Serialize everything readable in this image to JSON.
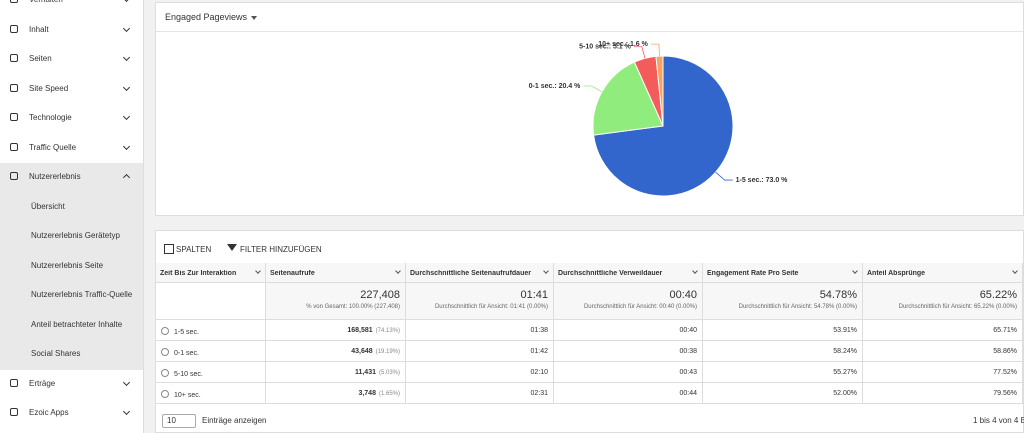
{
  "sidebar": {
    "items": [
      "Verhalten",
      "Inhalt",
      "Seiten",
      "Site Speed",
      "Technologie",
      "Traffic Quelle",
      "Nutzererlebnis"
    ],
    "subitems": [
      "Übersicht",
      "Nutzererlebnis Gerätetyp",
      "Nutzererlebnis Seite",
      "Nutzererlebnis Traffic-Quelle",
      "Anteil betrachteter Inhalte",
      "Social Shares"
    ],
    "after": [
      "Erträge",
      "Ezoic Apps"
    ]
  },
  "chart_data": {
    "type": "pie",
    "title": "Engaged Pageviews",
    "values": [
      73.0,
      20.4,
      5.1,
      1.6
    ],
    "value_labels": [
      "1-5 sec.: 73.0 %",
      "0-1 sec.: 20.4 %",
      "5-10 sec.: 5.1 %",
      "10+ sec.: 1.6 %"
    ],
    "colors": [
      "#3366cc",
      "#90ed7d",
      "#f45b5b",
      "#f7a35c"
    ]
  },
  "toolbar": {
    "columns_button": "SPALTEN",
    "filter_button": "FILTER HINZUFÜGEN"
  },
  "table": {
    "headers": [
      "Zeit Bis Zur Interaktion",
      "Seitenaufrufe",
      "Durchschnittliche Seitenaufrufdauer",
      "Durchschnittliche Verweildauer",
      "Engagement Rate Pro Seite",
      "Anteil Absprünge"
    ],
    "totals": [
      {
        "value": "227,408",
        "note": "% von Gesamt: 100.00% (227,408)"
      },
      {
        "value": "01:41",
        "note": "Durchschnittlich für Ansicht: 01:41 (0.00%)"
      },
      {
        "value": "00:40",
        "note": "Durchschnittlich für Ansicht: 00:40 (0.00%)"
      },
      {
        "value": "54.78%",
        "note": "Durchschnittlich für Ansicht: 54.78% (0.00%)"
      },
      {
        "value": "65.22%",
        "note": "Durchschnittlich für Ansicht: 65.22% (0.00%)"
      }
    ],
    "rows": [
      [
        "1-5 sec.",
        {
          "value": "168,581",
          "share": "(74.13%)"
        },
        "01:38",
        "00:40",
        "53.91%",
        "65.71%"
      ],
      [
        "0-1 sec.",
        {
          "value": "43,648",
          "share": "(19.19%)"
        },
        "01:42",
        "00:38",
        "58.24%",
        "58.86%"
      ],
      [
        "5-10 sec.",
        {
          "value": "11,431",
          "share": "(5.03%)"
        },
        "02:10",
        "00:43",
        "55.27%",
        "77.52%"
      ],
      [
        "10+ sec.",
        {
          "value": "3,748",
          "share": "(1.65%)"
        },
        "02:31",
        "00:44",
        "52.00%",
        "79.56%"
      ]
    ]
  },
  "footer": {
    "page_size": "10",
    "page_size_label": "Einträge anzeigen",
    "range": "1 bis 4 von 4 E"
  }
}
